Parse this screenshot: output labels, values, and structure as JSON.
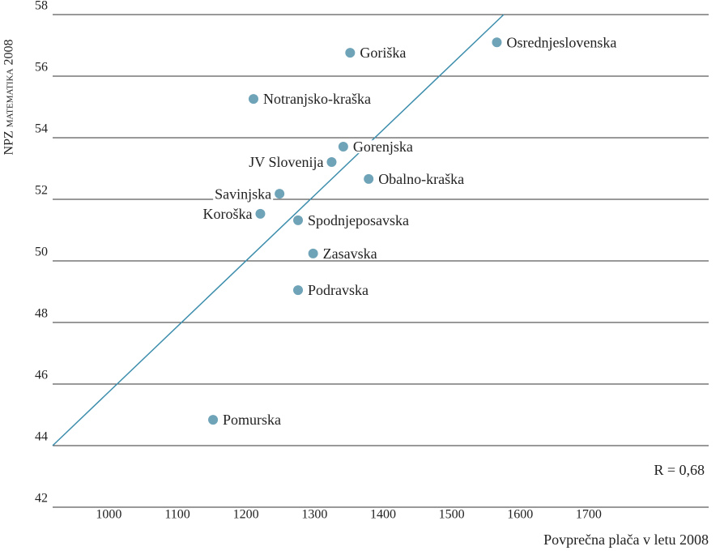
{
  "chart_data": {
    "type": "scatter",
    "x_label": "Povprečna plača v letu 2008",
    "y_label": "NPZ matematika 2008",
    "annotation": "R = 0,68",
    "color": "#6fa3b8",
    "trend_color": "#3c8dac",
    "grid": true,
    "points": [
      {
        "name": "Osrednjeslovenska",
        "x": 1566,
        "y": 57.1
      },
      {
        "name": "Goriška",
        "x": 1352,
        "y": 56.76
      },
      {
        "name": "Notranjsko-kraška",
        "x": 1211,
        "y": 55.26
      },
      {
        "name": "Gorenjska",
        "x": 1342,
        "y": 53.71
      },
      {
        "name": "JV Slovenija",
        "x": 1325,
        "y": 53.21
      },
      {
        "name": "Obalno-kraška",
        "x": 1379,
        "y": 52.66
      },
      {
        "name": "Savinjska",
        "x": 1249,
        "y": 52.18
      },
      {
        "name": "Koroška",
        "x": 1221,
        "y": 51.53
      },
      {
        "name": "Spodnjeposavska",
        "x": 1276,
        "y": 51.32
      },
      {
        "name": "Zasavska",
        "x": 1298,
        "y": 50.24
      },
      {
        "name": "Podravska",
        "x": 1276,
        "y": 49.05
      },
      {
        "name": "Pomurska",
        "x": 1152,
        "y": 44.84
      }
    ],
    "trendline": {
      "x": [
        918,
        1576
      ],
      "y": [
        44,
        58
      ]
    },
    "xlim": [
      918,
      1875
    ],
    "ylim": [
      42,
      58
    ],
    "xticks": [
      1000,
      1100,
      1200,
      1300,
      1400,
      1500,
      1600,
      1700
    ],
    "yticks": [
      42,
      44,
      46,
      48,
      50,
      52,
      54,
      56,
      58
    ]
  }
}
